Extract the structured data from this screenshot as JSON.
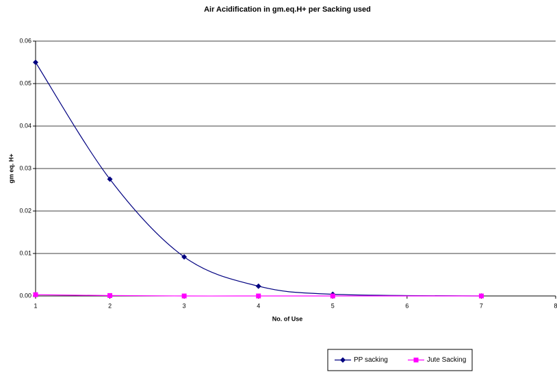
{
  "chart_data": {
    "type": "line",
    "title": "Air Acidification in gm.eq.H+ per Sacking used",
    "x_label": "No. of Use",
    "y_label": "gm eq. H+",
    "x": [
      1,
      2,
      3,
      4,
      5,
      7
    ],
    "series": [
      {
        "name": "PP sacking",
        "color": "#000080",
        "marker": "diamond",
        "values": [
          0.055,
          0.0275,
          0.0092,
          0.0023,
          0.0004,
          0.0
        ]
      },
      {
        "name": "Jute Sacking",
        "color": "#ff00ff",
        "marker": "square",
        "values": [
          0.0003,
          0.0001,
          0.0,
          0.0,
          0.0,
          0.0
        ]
      }
    ],
    "xlim": [
      1,
      8
    ],
    "xticks": [
      1,
      2,
      3,
      4,
      5,
      6,
      7,
      8
    ],
    "ylim": [
      0,
      0.06
    ],
    "yticks": [
      {
        "value": 0,
        "label": "0.00"
      },
      0.01,
      0.02,
      0.03,
      0.04,
      0.05,
      0.06
    ],
    "grid": true,
    "smooth": true,
    "legend": "bottom"
  }
}
